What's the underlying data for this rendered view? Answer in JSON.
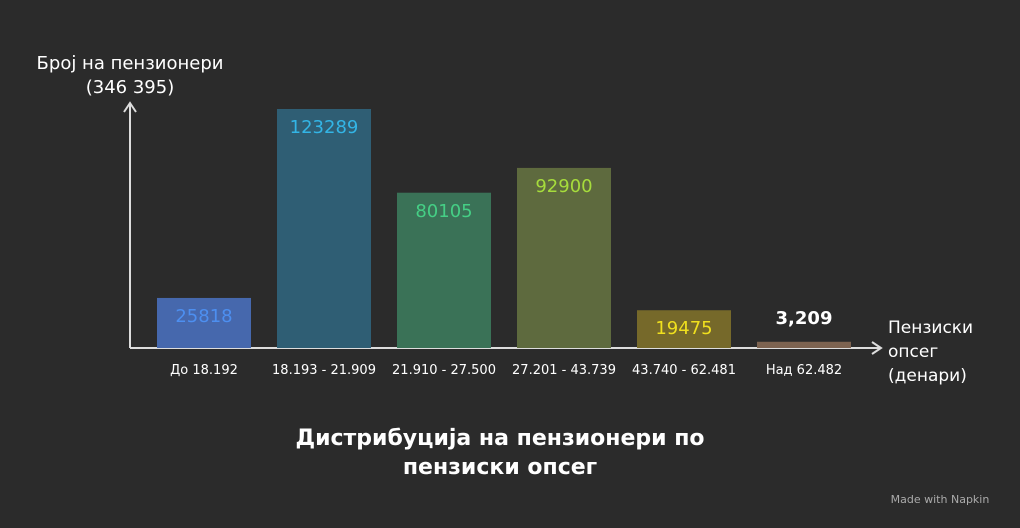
{
  "chart_data": {
    "type": "bar",
    "title": "Дистрибуција на пензионери по пензиски опсег",
    "y_label": "Број на пензионери (346 395)",
    "x_label": "Пензиски опсег (денари)",
    "categories": [
      "До 18.192",
      "18.193 - 21.909",
      "21.910 - 27.500",
      "27.201 - 43.739",
      "43.740 - 62.481",
      "Над 62.482"
    ],
    "values": [
      25818,
      123289,
      80105,
      92900,
      19475,
      3209
    ],
    "value_labels": [
      "25818",
      "123289",
      "80105",
      "92900",
      "19475",
      "3,209"
    ],
    "colors": [
      "#4668ad",
      "#2f5e74",
      "#3a7257",
      "#5e6a3e",
      "#76692a",
      "#7d6350"
    ],
    "label_colors": [
      "#4d8ff0",
      "#33b5e6",
      "#45cf85",
      "#a6dc3c",
      "#f0e01e",
      "#ffffff"
    ],
    "watermark": "Made with Napkin"
  }
}
